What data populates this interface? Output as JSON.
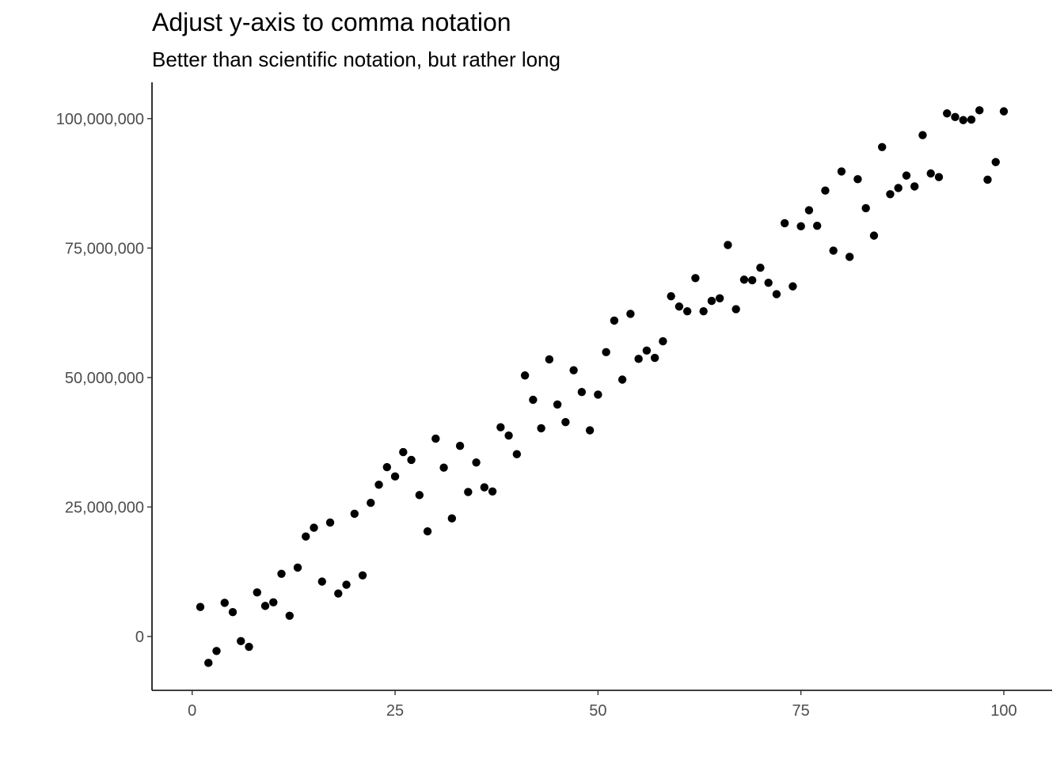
{
  "chart_data": {
    "type": "scatter",
    "title": "Adjust y-axis to comma notation",
    "subtitle": "Better than scientific notation, but rather long",
    "xlabel": "",
    "ylabel": "",
    "xlim": [
      -4.95,
      105.95
    ],
    "ylim": [
      -10400000,
      107000000
    ],
    "grid": false,
    "legend": "none",
    "point_color": "#000000",
    "x_ticks": [
      {
        "value": 0,
        "label": "0"
      },
      {
        "value": 25,
        "label": "25"
      },
      {
        "value": 50,
        "label": "50"
      },
      {
        "value": 75,
        "label": "75"
      },
      {
        "value": 100,
        "label": "100"
      }
    ],
    "y_ticks": [
      {
        "value": 0,
        "label": "0"
      },
      {
        "value": 25000000,
        "label": "25,000,000"
      },
      {
        "value": 50000000,
        "label": "50,000,000"
      },
      {
        "value": 75000000,
        "label": "75,000,000"
      },
      {
        "value": 100000000,
        "label": "100,000,000"
      }
    ],
    "points": [
      [
        1,
        5700000
      ],
      [
        2,
        -5100000
      ],
      [
        3,
        -2800000
      ],
      [
        4,
        6500000
      ],
      [
        5,
        4700000
      ],
      [
        6,
        -900000
      ],
      [
        7,
        -2000000
      ],
      [
        8,
        8500000
      ],
      [
        9,
        5900000
      ],
      [
        10,
        6600000
      ],
      [
        11,
        12100000
      ],
      [
        12,
        4000000
      ],
      [
        13,
        13300000
      ],
      [
        14,
        19300000
      ],
      [
        15,
        21000000
      ],
      [
        16,
        10600000
      ],
      [
        17,
        22000000
      ],
      [
        18,
        8300000
      ],
      [
        19,
        10000000
      ],
      [
        20,
        23700000
      ],
      [
        21,
        11800000
      ],
      [
        22,
        25800000
      ],
      [
        23,
        29300000
      ],
      [
        24,
        32700000
      ],
      [
        25,
        30900000
      ],
      [
        26,
        35600000
      ],
      [
        27,
        34100000
      ],
      [
        28,
        27300000
      ],
      [
        29,
        20300000
      ],
      [
        30,
        38200000
      ],
      [
        31,
        32600000
      ],
      [
        32,
        22800000
      ],
      [
        33,
        36800000
      ],
      [
        34,
        27900000
      ],
      [
        35,
        33600000
      ],
      [
        36,
        28800000
      ],
      [
        37,
        28000000
      ],
      [
        38,
        40400000
      ],
      [
        39,
        38800000
      ],
      [
        40,
        35200000
      ],
      [
        41,
        50400000
      ],
      [
        42,
        45700000
      ],
      [
        43,
        40200000
      ],
      [
        44,
        53500000
      ],
      [
        45,
        44800000
      ],
      [
        46,
        41400000
      ],
      [
        47,
        51400000
      ],
      [
        48,
        47200000
      ],
      [
        49,
        39800000
      ],
      [
        50,
        46700000
      ],
      [
        51,
        54900000
      ],
      [
        52,
        61000000
      ],
      [
        53,
        49600000
      ],
      [
        54,
        62300000
      ],
      [
        55,
        53600000
      ],
      [
        56,
        55200000
      ],
      [
        57,
        53800000
      ],
      [
        58,
        57000000
      ],
      [
        59,
        65700000
      ],
      [
        60,
        63700000
      ],
      [
        61,
        62800000
      ],
      [
        62,
        69200000
      ],
      [
        63,
        62800000
      ],
      [
        64,
        64800000
      ],
      [
        65,
        65300000
      ],
      [
        66,
        75600000
      ],
      [
        67,
        63200000
      ],
      [
        68,
        68900000
      ],
      [
        69,
        68800000
      ],
      [
        70,
        71200000
      ],
      [
        71,
        68300000
      ],
      [
        72,
        66100000
      ],
      [
        73,
        79800000
      ],
      [
        74,
        67600000
      ],
      [
        75,
        79200000
      ],
      [
        76,
        82300000
      ],
      [
        77,
        79300000
      ],
      [
        78,
        86100000
      ],
      [
        79,
        74500000
      ],
      [
        80,
        89800000
      ],
      [
        81,
        73300000
      ],
      [
        82,
        88300000
      ],
      [
        83,
        82700000
      ],
      [
        84,
        77400000
      ],
      [
        85,
        94500000
      ],
      [
        86,
        85400000
      ],
      [
        87,
        86600000
      ],
      [
        88,
        89000000
      ],
      [
        89,
        86900000
      ],
      [
        90,
        96800000
      ],
      [
        91,
        89400000
      ],
      [
        92,
        88700000
      ],
      [
        93,
        101000000
      ],
      [
        94,
        100300000
      ],
      [
        95,
        99700000
      ],
      [
        96,
        99800000
      ],
      [
        97,
        101600000
      ],
      [
        98,
        88200000
      ],
      [
        99,
        91600000
      ],
      [
        100,
        101400000
      ]
    ]
  }
}
